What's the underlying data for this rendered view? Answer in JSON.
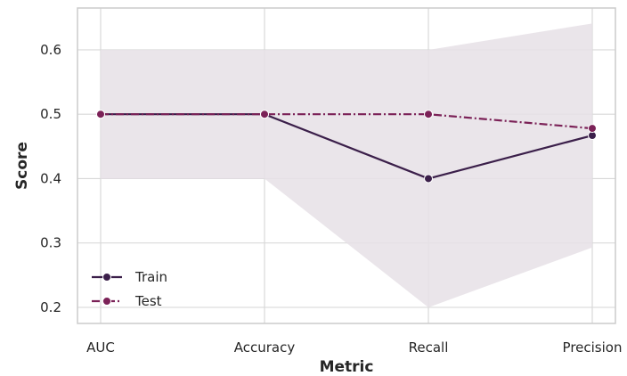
{
  "chart_data": {
    "type": "line",
    "xlabel": "Metric",
    "ylabel": "Score",
    "categories": [
      "AUC",
      "Accuracy",
      "Recall",
      "Precision"
    ],
    "ylim": [
      0.175,
      0.665
    ],
    "yticks": [
      0.2,
      0.3,
      0.4,
      0.5,
      0.6
    ],
    "ytick_labels": [
      "0.2",
      "0.3",
      "0.4",
      "0.5",
      "0.6"
    ],
    "grid": true,
    "legend_position": "bottom-left",
    "series": [
      {
        "name": "Train",
        "values": [
          0.5,
          0.5,
          0.4,
          0.467
        ],
        "band_lower": [
          0.4,
          0.4,
          0.2,
          0.293
        ],
        "band_upper": [
          0.6,
          0.6,
          0.6,
          0.641
        ],
        "color": "#3b1f4a",
        "dash": "solid"
      },
      {
        "name": "Test",
        "values": [
          0.5,
          0.5,
          0.5,
          0.478
        ],
        "color": "#7b2157",
        "dash": "dashdot"
      }
    ],
    "band_color": "#e6e1e6"
  }
}
